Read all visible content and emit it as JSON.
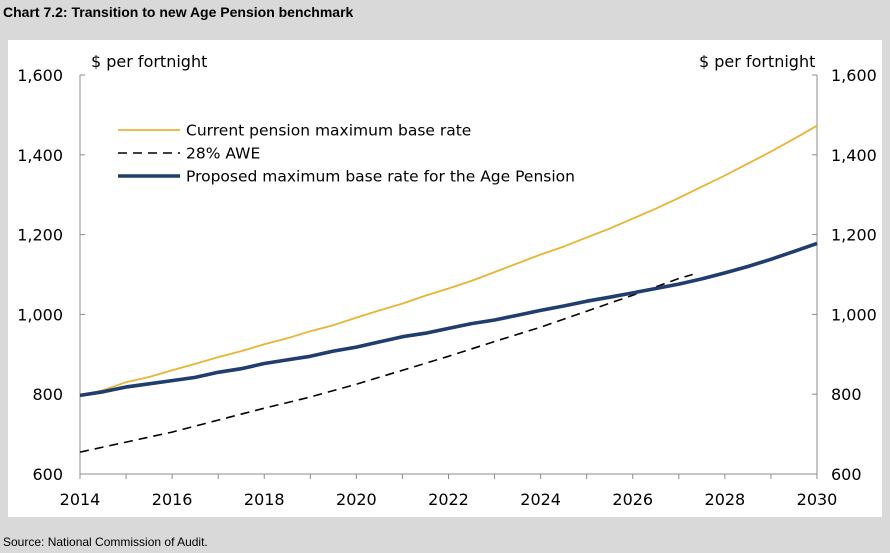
{
  "title": "Chart 7.2: Transition to new Age Pension benchmark",
  "source": "Source: National Commission of Audit.",
  "chart_data": {
    "type": "line",
    "ylabel_left": "$ per fortnight",
    "ylabel_right": "$ per fortnight",
    "xlim": [
      2014,
      2030
    ],
    "ylim": [
      600,
      1600
    ],
    "x_ticks": [
      2014,
      2016,
      2018,
      2020,
      2022,
      2024,
      2026,
      2028,
      2030
    ],
    "y_ticks": [
      600,
      800,
      1000,
      1200,
      1400,
      1600
    ],
    "y_tick_labels": [
      "600",
      "800",
      "1,000",
      "1,200",
      "1,400",
      "1,600"
    ],
    "legend_position": "top-left",
    "series": [
      {
        "name": "Current pension maximum base rate",
        "color": "#e8b432",
        "style": "solid",
        "x": [
          2014,
          2014.5,
          2015,
          2015.5,
          2016,
          2016.5,
          2017,
          2017.5,
          2018,
          2018.5,
          2019,
          2019.5,
          2020,
          2020.5,
          2021,
          2021.5,
          2022,
          2022.5,
          2023,
          2023.5,
          2024,
          2024.5,
          2025,
          2025.5,
          2026,
          2026.5,
          2027,
          2027.5,
          2028,
          2028.5,
          2029,
          2029.5,
          2030
        ],
        "y": [
          797,
          810,
          830,
          843,
          860,
          876,
          893,
          908,
          925,
          940,
          958,
          973,
          992,
          1010,
          1027,
          1047,
          1065,
          1084,
          1106,
          1128,
          1150,
          1170,
          1193,
          1215,
          1240,
          1265,
          1292,
          1320,
          1348,
          1378,
          1408,
          1440,
          1473
        ]
      },
      {
        "name": "28% AWE",
        "color": "#000000",
        "style": "dashed",
        "x": [
          2014,
          2015,
          2016,
          2017,
          2018,
          2019,
          2020,
          2021,
          2022,
          2023,
          2024,
          2025,
          2026,
          2027,
          2027.3
        ],
        "y": [
          655,
          680,
          705,
          735,
          765,
          793,
          825,
          860,
          895,
          932,
          968,
          1008,
          1048,
          1090,
          1100
        ]
      },
      {
        "name": "Proposed maximum base rate for the Age Pension",
        "color": "#1f3d6e",
        "style": "solid-thick",
        "x": [
          2014,
          2014.5,
          2015,
          2015.5,
          2016,
          2016.5,
          2017,
          2017.5,
          2018,
          2018.5,
          2019,
          2019.5,
          2020,
          2020.5,
          2021,
          2021.5,
          2022,
          2022.5,
          2023,
          2023.5,
          2024,
          2024.5,
          2025,
          2025.5,
          2026,
          2026.5,
          2027,
          2027.5,
          2028,
          2028.5,
          2029,
          2029.5,
          2030
        ],
        "y": [
          797,
          806,
          818,
          826,
          834,
          842,
          855,
          864,
          877,
          886,
          895,
          908,
          918,
          931,
          944,
          953,
          965,
          977,
          986,
          998,
          1010,
          1021,
          1033,
          1043,
          1054,
          1065,
          1076,
          1089,
          1104,
          1120,
          1138,
          1158,
          1178
        ]
      }
    ]
  }
}
